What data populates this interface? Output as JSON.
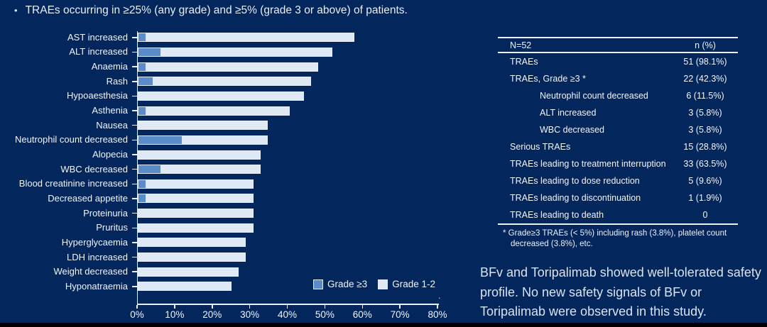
{
  "title": "TRAEs occurring in ≥25% (any grade) and ≥5% (grade 3 or above) of patients.",
  "title_bullet": "•",
  "colors": {
    "background": "#03265c",
    "grade3_blue": "#5b8bc9",
    "grade12_light": "#dfe8f5",
    "text_white": "#f1f5fb",
    "axis_line": "#e9eef7"
  },
  "chart_data": {
    "type": "bar",
    "orientation": "horizontal",
    "stacked": true,
    "title": "",
    "xlabel": "",
    "ylabel": "",
    "xlim": [
      0,
      80
    ],
    "x_tick_values": [
      0,
      10,
      20,
      30,
      40,
      50,
      60,
      70,
      80
    ],
    "x_ticks": [
      "0%",
      "10%",
      "20%",
      "30%",
      "40%",
      "50%",
      "60%",
      "70%",
      "80%"
    ],
    "grid": false,
    "legend_position": "bottom-right",
    "categories": [
      "AST increased",
      "ALT increased",
      "Anaemia",
      "Rash",
      "Hypoaesthesia",
      "Asthenia",
      "Nausea",
      "Neutrophil count decreased",
      "Alopecia",
      "WBC decreased",
      "Blood creatinine increased",
      "Decreased appetite",
      "Proteinuria",
      "Pruritus",
      "Hyperglycaemia",
      "LDH increased",
      "Weight decreased",
      "Hyponatraemia"
    ],
    "totals_any_grade_pct": [
      57.7,
      51.9,
      48.1,
      46.2,
      44.2,
      40.4,
      34.6,
      34.6,
      32.7,
      32.7,
      30.8,
      30.8,
      30.8,
      30.8,
      28.8,
      28.8,
      26.9,
      25.0
    ],
    "series": [
      {
        "name": "Grade ≥3",
        "color": "#5b8bc9",
        "values": [
          1.9,
          5.8,
          1.9,
          3.8,
          0,
          1.9,
          0,
          11.5,
          0,
          5.8,
          1.9,
          1.9,
          0,
          0,
          0,
          0,
          0,
          0
        ]
      },
      {
        "name": "Grade 1-2",
        "color": "#dfe8f5",
        "values": [
          55.8,
          46.1,
          46.2,
          42.4,
          44.2,
          38.5,
          34.6,
          23.1,
          32.7,
          26.9,
          28.9,
          28.9,
          30.8,
          30.8,
          28.8,
          28.8,
          26.9,
          25.0
        ]
      }
    ]
  },
  "table": {
    "header": [
      "N=52",
      "n (%)"
    ],
    "rows": [
      {
        "label": "TRAEs",
        "value": "51 (98.1%)",
        "indent": false
      },
      {
        "label": "TRAEs, Grade ≥3 *",
        "value": "22 (42.3%)",
        "indent": false
      },
      {
        "label": "Neutrophil count decreased",
        "value": "6 (11.5%)",
        "indent": true
      },
      {
        "label": "ALT increased",
        "value": "3 (5.8%)",
        "indent": true
      },
      {
        "label": "WBC decreased",
        "value": "3 (5.8%)",
        "indent": true
      },
      {
        "label": "Serious TRAEs",
        "value": "15 (28.8%)",
        "indent": false
      },
      {
        "label": "TRAEs leading to treatment interruption",
        "value": "33 (63.5%)",
        "indent": false
      },
      {
        "label": "TRAEs leading to dose reduction",
        "value": "5 (9.6%)",
        "indent": false
      },
      {
        "label": "TRAEs leading to discontinuation",
        "value": "1 (1.9%)",
        "indent": false
      },
      {
        "label": "TRAEs leading to death",
        "value": "0",
        "indent": false
      }
    ],
    "footnote": "* Grade≥3 TRAEs (< 5%) including rash (3.8%), platelet count decreased (3.8%), etc."
  },
  "summary": "BFv and Toripalimab showed well-tolerated safety profile. No new safety signals of BFv or Toripalimab were observed in this study.",
  "stray_period": "."
}
